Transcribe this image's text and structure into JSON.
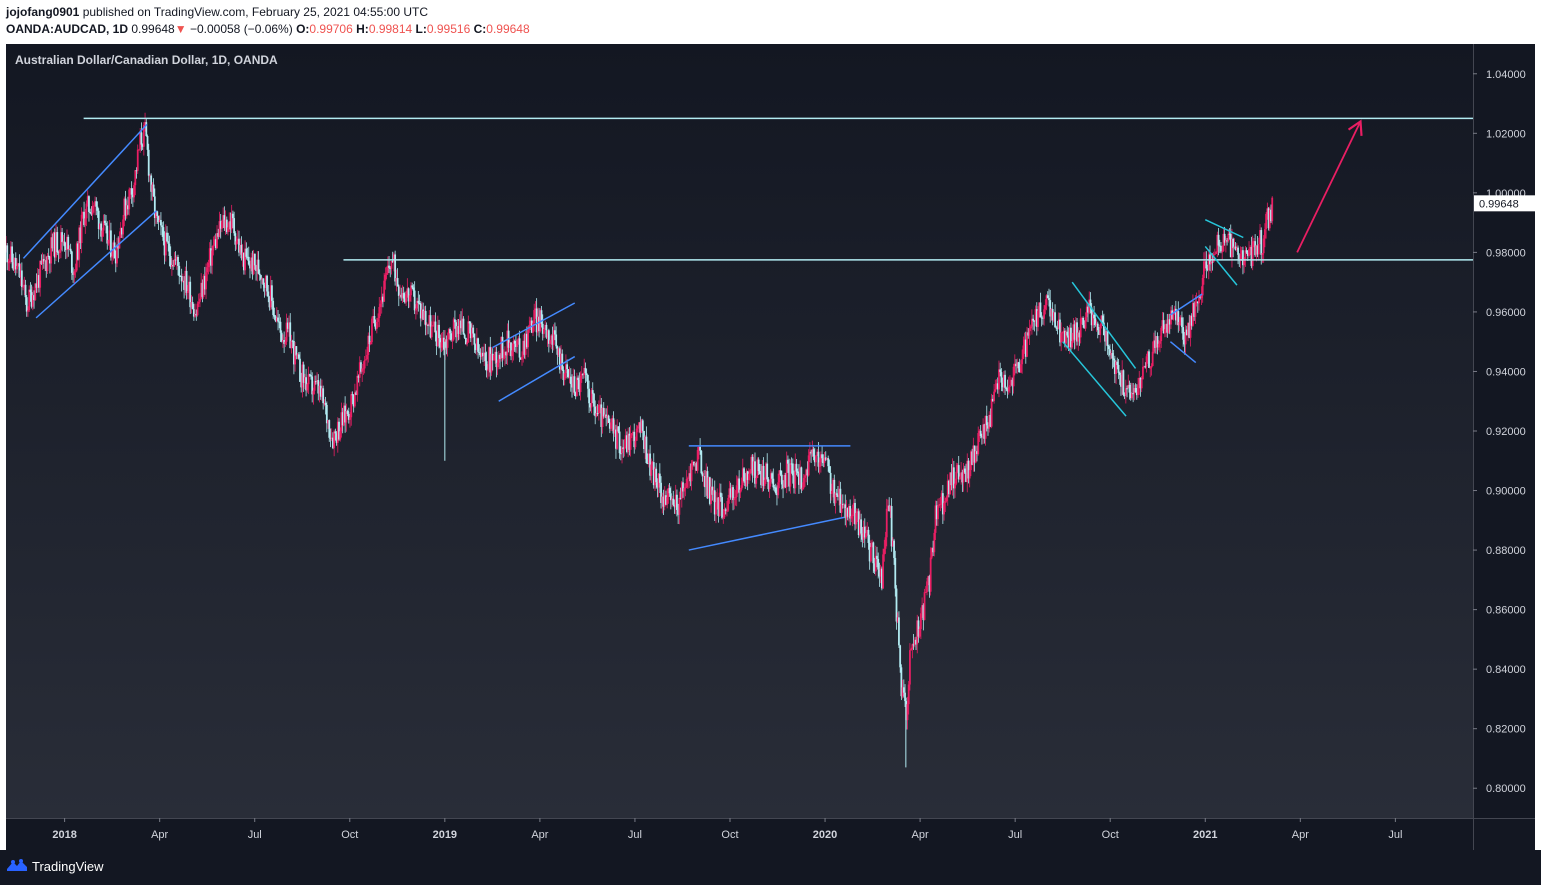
{
  "header": {
    "author": "jojofang0901",
    "published": "published on TradingView.com, February 25, 2021 04:55:00 UTC",
    "symbol": "OANDA:AUDCAD, 1D",
    "last": "0.99648",
    "change_arrow": "▼",
    "change": "−0.00058 (−0.06%)",
    "open_label": "O:",
    "open": "0.99706",
    "high_label": "H:",
    "high": "0.99814",
    "low_label": "L:",
    "low": "0.99516",
    "close_label": "C:",
    "close": "0.99648"
  },
  "footer": {
    "brand": "TradingView",
    "logo_icon": "tradingview-logo-icon"
  },
  "colors": {
    "background": "#1e222d",
    "up": "#e91e63",
    "down": "#b2ebf2",
    "levels": "#b2ebf2",
    "pattern_blue": "#448aff",
    "pattern_cyan": "#26c6da",
    "target_arrow": "#e91e63"
  },
  "chart_data": {
    "type": "candlestick",
    "title": "Australian Dollar/Canadian Dollar, 1D, OANDA",
    "interval": "1D",
    "ylim": [
      0.79,
      1.05
    ],
    "y_ticks": [
      "1.04000",
      "1.02000",
      "1.00000",
      "0.98000",
      "0.96000",
      "0.94000",
      "0.92000",
      "0.90000",
      "0.88000",
      "0.86000",
      "0.84000",
      "0.82000",
      "0.80000"
    ],
    "y_tick_values": [
      1.04,
      1.02,
      1.0,
      0.98,
      0.96,
      0.94,
      0.92,
      0.9,
      0.88,
      0.86,
      0.84,
      0.82,
      0.8
    ],
    "x_ticks": [
      {
        "label": "2018",
        "t": 0.0
      },
      {
        "label": "Apr",
        "t": 3.0
      },
      {
        "label": "Jul",
        "t": 6.0
      },
      {
        "label": "Oct",
        "t": 9.0
      },
      {
        "label": "2019",
        "t": 12.0
      },
      {
        "label": "Apr",
        "t": 15.0
      },
      {
        "label": "Jul",
        "t": 18.0
      },
      {
        "label": "Oct",
        "t": 21.0
      },
      {
        "label": "2020",
        "t": 24.0
      },
      {
        "label": "Apr",
        "t": 27.0
      },
      {
        "label": "Jul",
        "t": 30.0
      },
      {
        "label": "Oct",
        "t": 33.0
      },
      {
        "label": "2021",
        "t": 36.0
      },
      {
        "label": "Apr",
        "t": 39.0
      },
      {
        "label": "Jul",
        "t": 42.0
      }
    ],
    "time_range_months": [
      -1.85,
      44.45
    ],
    "last_price": "0.99648",
    "price_path": [
      [
        -1.85,
        0.981
      ],
      [
        -1.4,
        0.972
      ],
      [
        -1.2,
        0.962
      ],
      [
        -0.8,
        0.972
      ],
      [
        -0.4,
        0.982
      ],
      [
        0.0,
        0.985
      ],
      [
        0.3,
        0.974
      ],
      [
        0.6,
        0.993
      ],
      [
        0.9,
        0.997
      ],
      [
        1.3,
        0.985
      ],
      [
        1.6,
        0.98
      ],
      [
        1.9,
        0.995
      ],
      [
        2.2,
        1.004
      ],
      [
        2.4,
        1.018
      ],
      [
        2.55,
        1.02
      ],
      [
        2.75,
        1.0
      ],
      [
        2.9,
        0.99
      ],
      [
        3.2,
        0.982
      ],
      [
        3.6,
        0.975
      ],
      [
        3.9,
        0.968
      ],
      [
        4.15,
        0.96
      ],
      [
        4.4,
        0.97
      ],
      [
        4.7,
        0.982
      ],
      [
        5.0,
        0.99
      ],
      [
        5.3,
        0.99
      ],
      [
        5.6,
        0.978
      ],
      [
        5.9,
        0.976
      ],
      [
        6.2,
        0.974
      ],
      [
        6.5,
        0.965
      ],
      [
        6.8,
        0.953
      ],
      [
        7.1,
        0.952
      ],
      [
        7.4,
        0.94
      ],
      [
        7.7,
        0.935
      ],
      [
        8.0,
        0.934
      ],
      [
        8.2,
        0.928
      ],
      [
        8.45,
        0.918
      ],
      [
        8.7,
        0.922
      ],
      [
        9.0,
        0.928
      ],
      [
        9.3,
        0.938
      ],
      [
        9.6,
        0.95
      ],
      [
        9.9,
        0.962
      ],
      [
        10.1,
        0.968
      ],
      [
        10.3,
        0.978
      ],
      [
        10.6,
        0.968
      ],
      [
        11.0,
        0.964
      ],
      [
        11.3,
        0.96
      ],
      [
        11.6,
        0.954
      ],
      [
        12.0,
        0.95
      ],
      [
        12.4,
        0.956
      ],
      [
        12.8,
        0.952
      ],
      [
        13.2,
        0.943
      ],
      [
        13.6,
        0.945
      ],
      [
        14.0,
        0.95
      ],
      [
        14.4,
        0.947
      ],
      [
        14.8,
        0.958
      ],
      [
        15.2,
        0.955
      ],
      [
        15.5,
        0.948
      ],
      [
        15.8,
        0.94
      ],
      [
        16.1,
        0.935
      ],
      [
        16.4,
        0.938
      ],
      [
        16.7,
        0.928
      ],
      [
        17.0,
        0.924
      ],
      [
        17.3,
        0.92
      ],
      [
        17.6,
        0.915
      ],
      [
        17.9,
        0.918
      ],
      [
        18.2,
        0.92
      ],
      [
        18.5,
        0.908
      ],
      [
        18.8,
        0.9
      ],
      [
        19.1,
        0.896
      ],
      [
        19.4,
        0.896
      ],
      [
        19.7,
        0.905
      ],
      [
        20.0,
        0.912
      ],
      [
        20.2,
        0.904
      ],
      [
        20.5,
        0.896
      ],
      [
        20.8,
        0.895
      ],
      [
        21.2,
        0.9
      ],
      [
        21.6,
        0.907
      ],
      [
        22.0,
        0.906
      ],
      [
        22.4,
        0.902
      ],
      [
        22.8,
        0.906
      ],
      [
        23.2,
        0.904
      ],
      [
        23.6,
        0.91
      ],
      [
        24.0,
        0.91
      ],
      [
        24.3,
        0.898
      ],
      [
        24.6,
        0.895
      ],
      [
        24.9,
        0.892
      ],
      [
        25.2,
        0.886
      ],
      [
        25.5,
        0.878
      ],
      [
        25.8,
        0.87
      ],
      [
        26.0,
        0.9
      ],
      [
        26.2,
        0.87
      ],
      [
        26.4,
        0.835
      ],
      [
        26.55,
        0.825
      ],
      [
        26.7,
        0.846
      ],
      [
        26.9,
        0.852
      ],
      [
        27.1,
        0.86
      ],
      [
        27.3,
        0.87
      ],
      [
        27.5,
        0.892
      ],
      [
        27.8,
        0.898
      ],
      [
        28.1,
        0.906
      ],
      [
        28.4,
        0.905
      ],
      [
        28.7,
        0.912
      ],
      [
        29.0,
        0.92
      ],
      [
        29.3,
        0.928
      ],
      [
        29.5,
        0.94
      ],
      [
        29.8,
        0.935
      ],
      [
        30.1,
        0.942
      ],
      [
        30.4,
        0.95
      ],
      [
        30.7,
        0.958
      ],
      [
        31.0,
        0.962
      ],
      [
        31.3,
        0.956
      ],
      [
        31.6,
        0.95
      ],
      [
        32.0,
        0.955
      ],
      [
        32.3,
        0.96
      ],
      [
        32.6,
        0.958
      ],
      [
        32.9,
        0.95
      ],
      [
        33.2,
        0.94
      ],
      [
        33.6,
        0.932
      ],
      [
        33.9,
        0.936
      ],
      [
        34.2,
        0.944
      ],
      [
        34.5,
        0.95
      ],
      [
        34.8,
        0.956
      ],
      [
        35.1,
        0.958
      ],
      [
        35.4,
        0.952
      ],
      [
        35.7,
        0.962
      ],
      [
        36.0,
        0.975
      ],
      [
        36.3,
        0.982
      ],
      [
        36.6,
        0.984
      ],
      [
        36.9,
        0.98
      ],
      [
        37.2,
        0.978
      ],
      [
        37.5,
        0.98
      ],
      [
        37.8,
        0.984
      ],
      [
        38.0,
        0.992
      ],
      [
        38.15,
        0.9965
      ]
    ],
    "horizontal_levels": [
      {
        "price": 1.025,
        "t_start": 0.6,
        "t_end": 44.45
      },
      {
        "price": 0.9775,
        "t_start": 8.8,
        "t_end": 44.45
      }
    ],
    "annotation_lines": [
      {
        "color": "pattern_blue",
        "points": [
          [
            -1.3,
            0.978
          ],
          [
            2.6,
            1.023
          ]
        ]
      },
      {
        "color": "pattern_blue",
        "points": [
          [
            -0.9,
            0.958
          ],
          [
            2.9,
            0.994
          ]
        ]
      },
      {
        "color": "pattern_blue",
        "points": [
          [
            13.5,
            0.948
          ],
          [
            16.1,
            0.963
          ]
        ]
      },
      {
        "color": "pattern_blue",
        "points": [
          [
            13.7,
            0.93
          ],
          [
            16.1,
            0.945
          ]
        ]
      },
      {
        "color": "pattern_blue",
        "points": [
          [
            19.7,
            0.915
          ],
          [
            24.8,
            0.915
          ]
        ]
      },
      {
        "color": "pattern_blue",
        "points": [
          [
            19.7,
            0.88
          ],
          [
            24.6,
            0.891
          ]
        ]
      },
      {
        "color": "pattern_cyan",
        "points": [
          [
            31.8,
            0.97
          ],
          [
            33.8,
            0.941
          ]
        ]
      },
      {
        "color": "pattern_cyan",
        "points": [
          [
            31.5,
            0.95
          ],
          [
            33.5,
            0.925
          ]
        ]
      },
      {
        "color": "pattern_blue",
        "points": [
          [
            34.9,
            0.959
          ],
          [
            35.9,
            0.966
          ]
        ]
      },
      {
        "color": "pattern_blue",
        "points": [
          [
            34.9,
            0.95
          ],
          [
            35.7,
            0.943
          ]
        ]
      },
      {
        "color": "pattern_cyan",
        "points": [
          [
            36.0,
            0.991
          ],
          [
            37.2,
            0.985
          ]
        ]
      },
      {
        "color": "pattern_cyan",
        "points": [
          [
            36.0,
            0.982
          ],
          [
            37.0,
            0.969
          ]
        ]
      }
    ],
    "target_arrow": {
      "from": [
        38.9,
        0.98
      ],
      "to": [
        40.9,
        1.024
      ]
    }
  }
}
